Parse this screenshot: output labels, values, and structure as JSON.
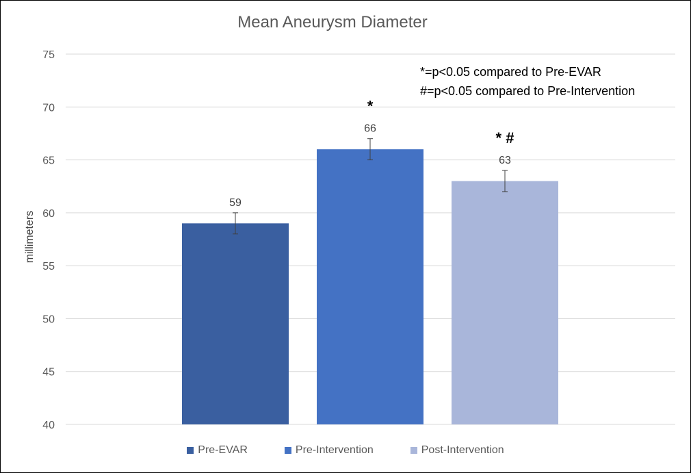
{
  "chart_data": {
    "type": "bar",
    "title": "Mean Aneurysm Diameter",
    "ylabel": "millimeters",
    "xlabel": "",
    "ylim": [
      40,
      75
    ],
    "yticks": [
      40,
      45,
      50,
      55,
      60,
      65,
      70,
      75
    ],
    "grid": true,
    "legend_position": "bottom",
    "categories": [
      "Pre-EVAR",
      "Pre-Intervention",
      "Post-Intervention"
    ],
    "values": [
      59,
      66,
      63
    ],
    "error": [
      1,
      1,
      1
    ],
    "data_labels": [
      "59",
      "66",
      "63"
    ],
    "significance": [
      "",
      "*",
      "* #"
    ],
    "colors": [
      "#3A5FA0",
      "#4472C4",
      "#A9B6DA"
    ],
    "annotations": [
      "*=p<0.05 compared to Pre-EVAR",
      "#=p<0.05 compared to Pre-Intervention"
    ]
  }
}
